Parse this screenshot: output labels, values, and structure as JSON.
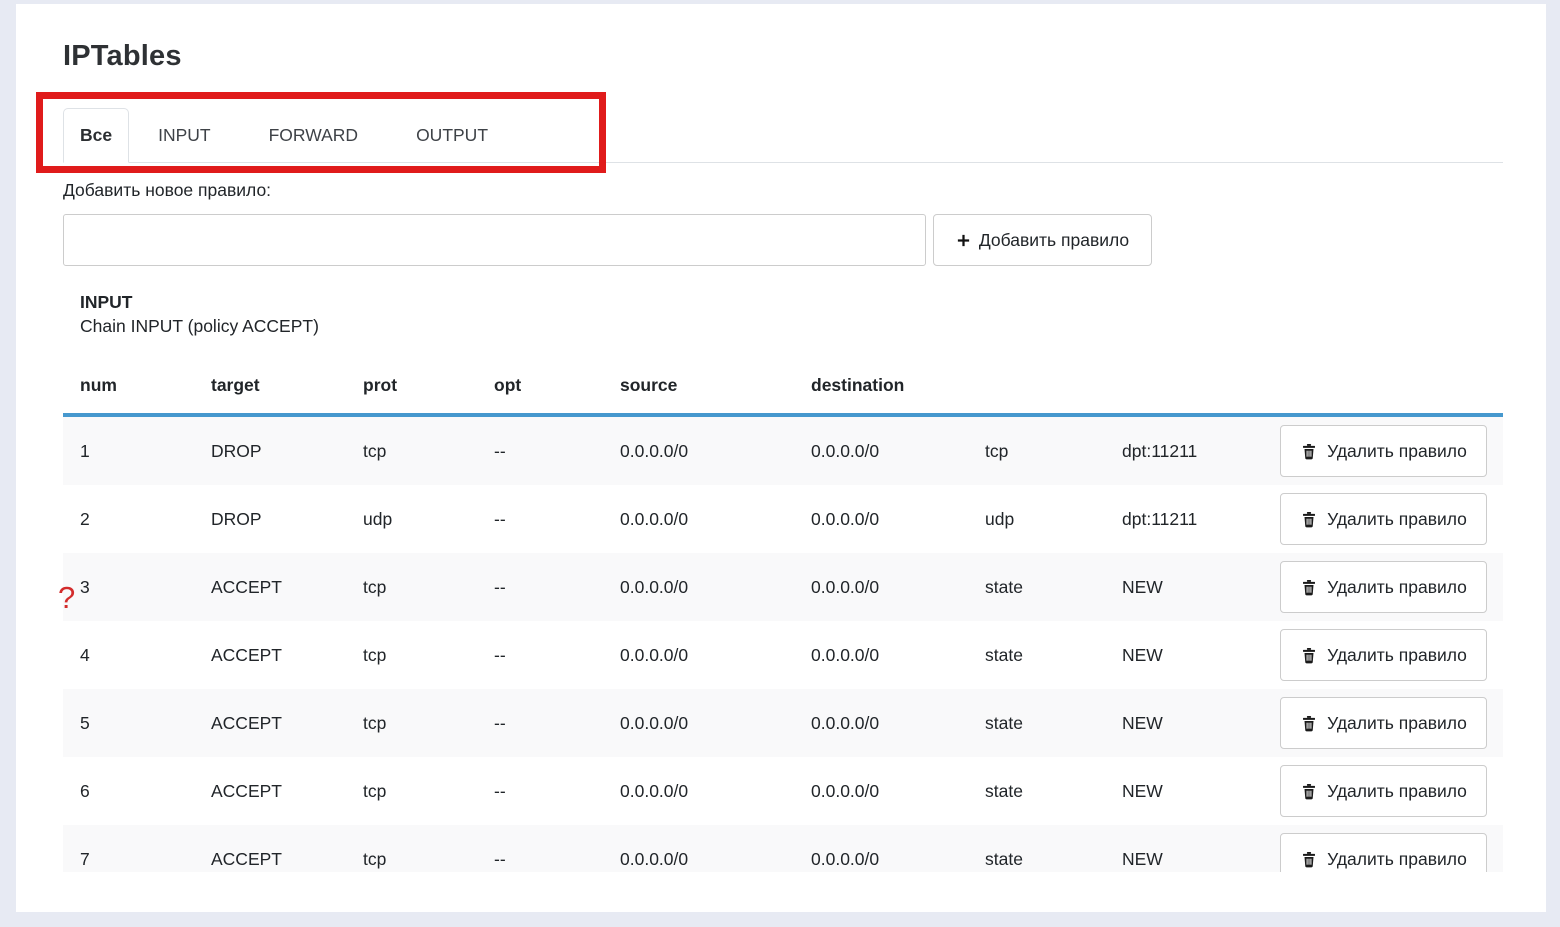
{
  "header": {
    "title": "IPTables"
  },
  "tabs": [
    {
      "label": "Все",
      "active": true
    },
    {
      "label": "INPUT",
      "active": false
    },
    {
      "label": "FORWARD",
      "active": false
    },
    {
      "label": "OUTPUT",
      "active": false
    }
  ],
  "add_rule": {
    "label": "Добавить новое правило:",
    "input_value": "",
    "input_placeholder": "",
    "button_label": "Добавить правило",
    "button_icon": "plus-icon"
  },
  "section": {
    "chain_name": "INPUT",
    "chain_info": "Chain INPUT (policy ACCEPT)"
  },
  "table": {
    "columns": [
      "num",
      "target",
      "prot",
      "opt",
      "source",
      "destination",
      "",
      "",
      ""
    ],
    "delete_button_label": "Удалить правило",
    "delete_button_icon": "trash-icon",
    "rows": [
      {
        "num": "1",
        "target": "DROP",
        "prot": "tcp",
        "opt": "--",
        "source": "0.0.0.0/0",
        "destination": "0.0.0.0/0",
        "extra1": "tcp",
        "extra2": "dpt:11211"
      },
      {
        "num": "2",
        "target": "DROP",
        "prot": "udp",
        "opt": "--",
        "source": "0.0.0.0/0",
        "destination": "0.0.0.0/0",
        "extra1": "udp",
        "extra2": "dpt:11211"
      },
      {
        "num": "3",
        "target": "ACCEPT",
        "prot": "tcp",
        "opt": "--",
        "source": "0.0.0.0/0",
        "destination": "0.0.0.0/0",
        "extra1": "state",
        "extra2": "NEW"
      },
      {
        "num": "4",
        "target": "ACCEPT",
        "prot": "tcp",
        "opt": "--",
        "source": "0.0.0.0/0",
        "destination": "0.0.0.0/0",
        "extra1": "state",
        "extra2": "NEW"
      },
      {
        "num": "5",
        "target": "ACCEPT",
        "prot": "tcp",
        "opt": "--",
        "source": "0.0.0.0/0",
        "destination": "0.0.0.0/0",
        "extra1": "state",
        "extra2": "NEW"
      },
      {
        "num": "6",
        "target": "ACCEPT",
        "prot": "tcp",
        "opt": "--",
        "source": "0.0.0.0/0",
        "destination": "0.0.0.0/0",
        "extra1": "state",
        "extra2": "NEW"
      },
      {
        "num": "7",
        "target": "ACCEPT",
        "prot": "tcp",
        "opt": "--",
        "source": "0.0.0.0/0",
        "destination": "0.0.0.0/0",
        "extra1": "state",
        "extra2": "NEW"
      }
    ]
  },
  "annotations": {
    "question_mark": "?",
    "red_box_color": "#e01b1b"
  },
  "colors": {
    "page_background": "#e7eaf3",
    "card_background": "#ffffff",
    "header_underline": "#4698ce",
    "row_stripe": "#f9f9fa",
    "border_gray": "#cccccc",
    "annotation_red": "#e01b1b"
  }
}
